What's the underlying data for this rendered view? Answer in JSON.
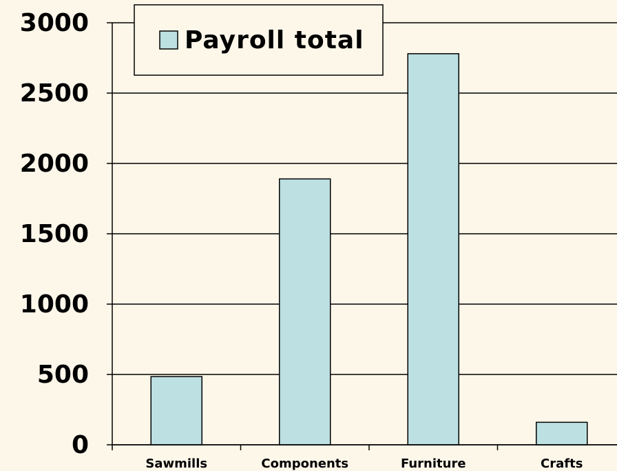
{
  "chart_data": {
    "type": "bar",
    "categories": [
      "Sawmills",
      "Components",
      "Furniture",
      "Crafts"
    ],
    "series": [
      {
        "name": "Payroll total",
        "color": "#bde0e2",
        "values": [
          485,
          1890,
          2780,
          160
        ]
      }
    ],
    "ylim": [
      0,
      3000
    ],
    "yticks": [
      0,
      500,
      1000,
      1500,
      2000,
      2500,
      3000
    ],
    "grid": true,
    "legend": "top-left"
  }
}
